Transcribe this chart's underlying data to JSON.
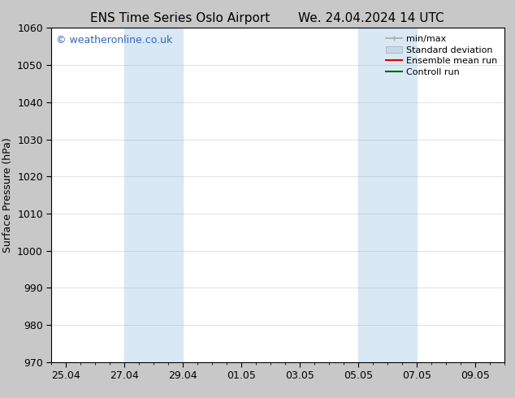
{
  "title_left": "ENS Time Series Oslo Airport",
  "title_right": "We. 24.04.2024 14 UTC",
  "ylabel": "Surface Pressure (hPa)",
  "ylim": [
    970,
    1060
  ],
  "yticks": [
    970,
    980,
    990,
    1000,
    1010,
    1020,
    1030,
    1040,
    1050,
    1060
  ],
  "xtick_labels": [
    "25.04",
    "27.04",
    "29.04",
    "01.05",
    "03.05",
    "05.05",
    "07.05",
    "09.05"
  ],
  "xtick_positions": [
    0,
    2,
    4,
    6,
    8,
    10,
    12,
    14
  ],
  "xlim": [
    -0.5,
    15.0
  ],
  "bg_color": "#c8c8c8",
  "plot_bg_color": "#ffffff",
  "shade_color": "#d8e8f5",
  "shade_regions": [
    {
      "x_start": 2,
      "x_end": 4
    },
    {
      "x_start": 10,
      "x_end": 12
    }
  ],
  "watermark": "© weatheronline.co.uk",
  "watermark_color": "#3366bb",
  "legend_entries": [
    {
      "label": "min/max"
    },
    {
      "label": "Standard deviation"
    },
    {
      "label": "Ensemble mean run"
    },
    {
      "label": "Controll run"
    }
  ],
  "legend_colors": [
    "#aaaaaa",
    "#c8d8e8",
    "#dd0000",
    "#006600"
  ],
  "title_fontsize": 11,
  "ylabel_fontsize": 9,
  "tick_fontsize": 9,
  "legend_fontsize": 8,
  "watermark_fontsize": 9,
  "tick_color": "#000000",
  "spine_color": "#000000",
  "grid_color": "#999999",
  "grid_lw": 0.4,
  "grid_alpha": 0.5
}
